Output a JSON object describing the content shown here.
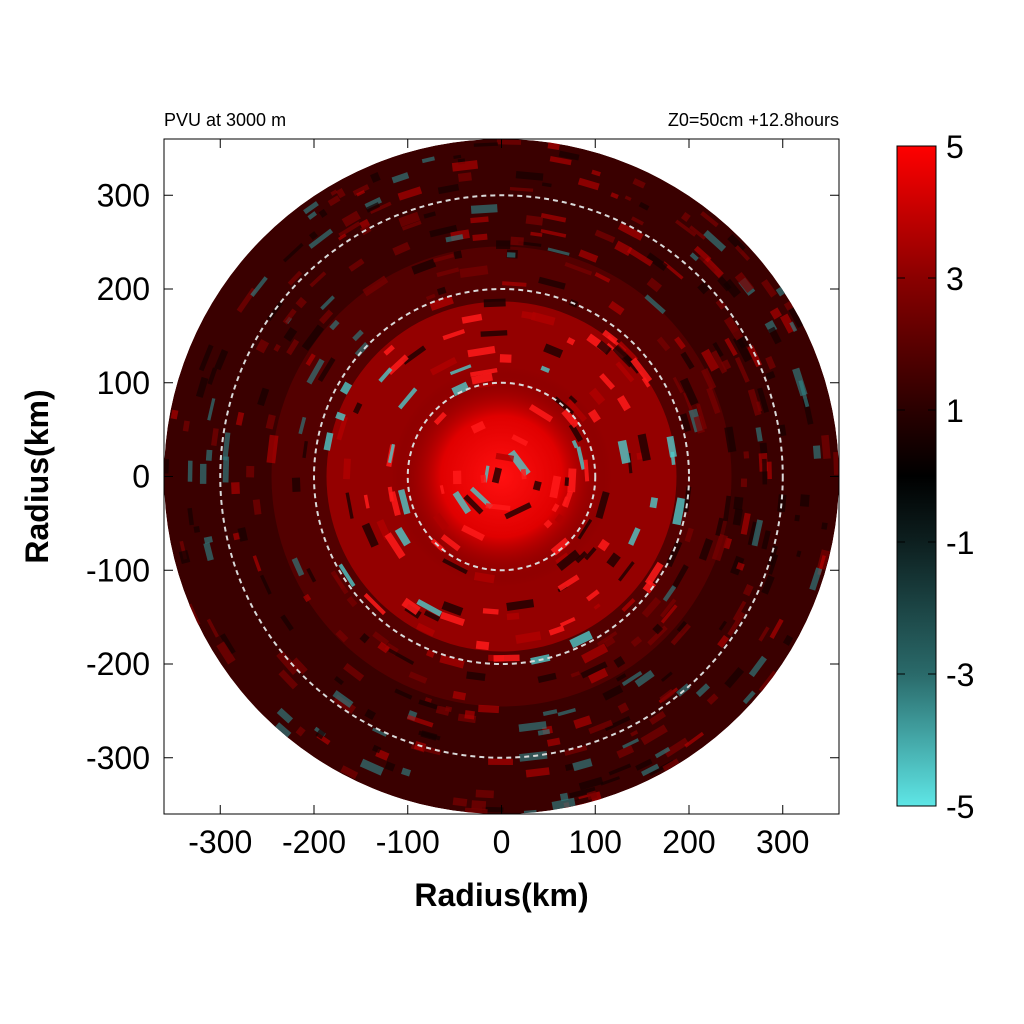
{
  "header": {
    "left_text": "PVU at  3000 m",
    "right_text": "Z0=50cm  +12.8hours"
  },
  "colors": {
    "positive": "#ff0000",
    "neutral": "#000000",
    "negative": "#5ee6e6",
    "ring": "#d9d9d9"
  },
  "chart_data": {
    "type": "heatmap",
    "title": "",
    "xlabel": "Radius(km)",
    "ylabel": "Radius(km)",
    "xlim": [
      -360,
      360
    ],
    "ylim": [
      -360,
      360
    ],
    "x_ticks": [
      "-300",
      "-200",
      "-100",
      "0",
      "100",
      "200",
      "300"
    ],
    "y_ticks": [
      "300",
      "200",
      "100",
      "0",
      "-100",
      "-200",
      "-300"
    ],
    "domain_radius_km": 360,
    "reference_circles_km": [
      100,
      200,
      300
    ],
    "colorbar": {
      "min": -5,
      "max": 5,
      "tick_labels": [
        "5",
        "3",
        "1",
        "-1",
        "-3",
        "-5"
      ]
    }
  }
}
